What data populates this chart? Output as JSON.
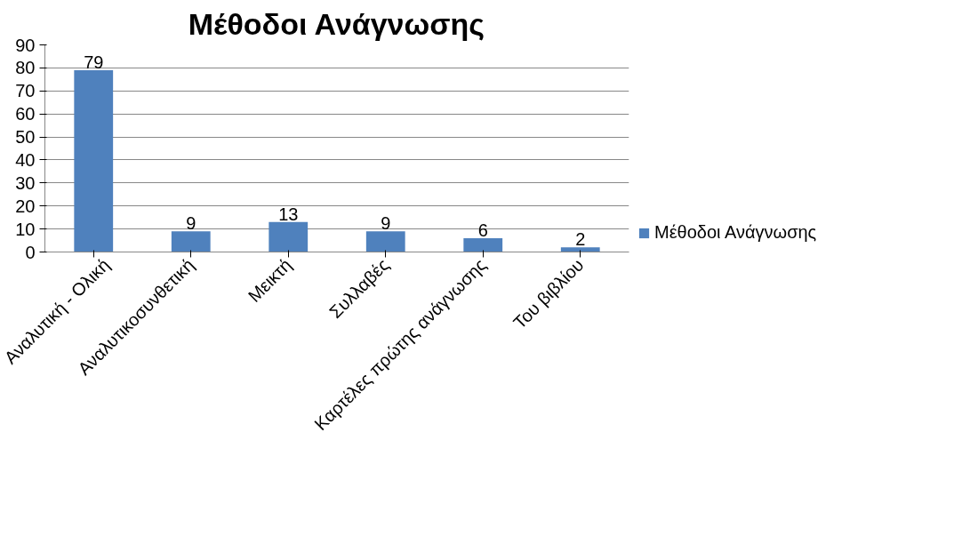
{
  "chart_data": {
    "type": "bar",
    "title": "Μέθοδοι Ανάγνωσης",
    "categories": [
      "Αναλυτική - Ολική",
      "Αναλυτικοσυνθετική",
      "Μεικτή",
      "Συλλαβές",
      "Καρτέλες πρώτης ανάγνωσης",
      "Του βιβλίου"
    ],
    "series": [
      {
        "name": "Μέθοδοι Ανάγνωσης",
        "color": "#4f81bd",
        "values": [
          79,
          9,
          13,
          9,
          6,
          2
        ]
      }
    ],
    "ylim": [
      0,
      90
    ],
    "yticks": [
      0,
      10,
      20,
      30,
      40,
      50,
      60,
      70,
      80,
      90
    ],
    "grid": "y",
    "legend": "right",
    "data_labels": true
  }
}
